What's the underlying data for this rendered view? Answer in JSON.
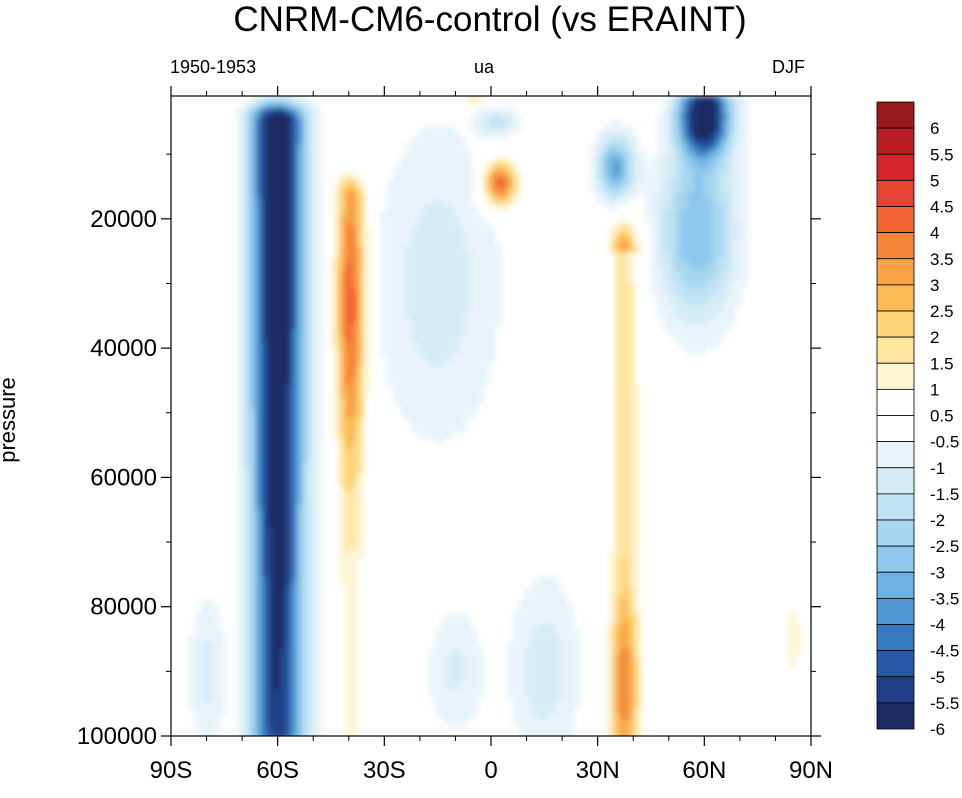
{
  "chart_data": {
    "type": "heatmap",
    "title": "CNRM-CM6-control (vs ERAINT)",
    "subtitle_left": "1950-1953",
    "subtitle_center": "ua",
    "subtitle_right": "DJF",
    "xlabel": "",
    "ylabel": "pressure",
    "x_ticks": [
      "90S",
      "60S",
      "30S",
      "0",
      "30N",
      "60N",
      "90N"
    ],
    "x_tick_values": [
      -90,
      -60,
      -30,
      0,
      30,
      60,
      90
    ],
    "xlim": [
      -90,
      90
    ],
    "y_ticks": [
      "20000",
      "40000",
      "60000",
      "80000",
      "100000"
    ],
    "y_tick_values": [
      20000,
      40000,
      60000,
      80000,
      100000
    ],
    "ylim": [
      1000,
      100000
    ],
    "y_inverted": true,
    "colorbar_labels": [
      "6",
      "5.5",
      "5",
      "4.5",
      "4",
      "3.5",
      "3",
      "2.5",
      "2",
      "1.5",
      "1",
      "0.5",
      "-0.5",
      "-1",
      "-1.5",
      "-2",
      "-2.5",
      "-3",
      "-3.5",
      "-4",
      "-4.5",
      "-5",
      "-5.5",
      "-6"
    ],
    "colorbar_colors": [
      "#9a1a1f",
      "#bc1d25",
      "#d7262b",
      "#e64333",
      "#f26434",
      "#f5853a",
      "#f8a244",
      "#fbbb55",
      "#fdd379",
      "#fee6a0",
      "#fef5d3",
      "#ffffff",
      "#ffffff",
      "#e8f4fa",
      "#d5ecf7",
      "#bfe3f4",
      "#a7d6f0",
      "#8dc8ec",
      "#6eb2e2",
      "#4f96d3",
      "#3679bf",
      "#2658a6",
      "#203f86",
      "#1a2b63"
    ],
    "features": [
      {
        "name": "southern jet negative bias",
        "lat_center": -60,
        "p_top": 5000,
        "p_bottom": 100000,
        "min_value": -6
      },
      {
        "name": "subtropical positive bias south",
        "lat_center": -40,
        "p_top": 17000,
        "p_bottom": 100000,
        "max_value": 3.5
      },
      {
        "name": "equatorial upper positive bias",
        "lat_center": 2,
        "p_top": 12000,
        "p_bottom": 17000,
        "max_value": 4
      },
      {
        "name": "northern subtropical positive bias",
        "lat_center": 38,
        "p_top": 24000,
        "p_bottom": 100000,
        "max_value": 3
      },
      {
        "name": "northern high latitude negative bias",
        "lat_center": 60,
        "p_top": 1000,
        "p_bottom": 30000,
        "min_value": -6
      }
    ]
  }
}
